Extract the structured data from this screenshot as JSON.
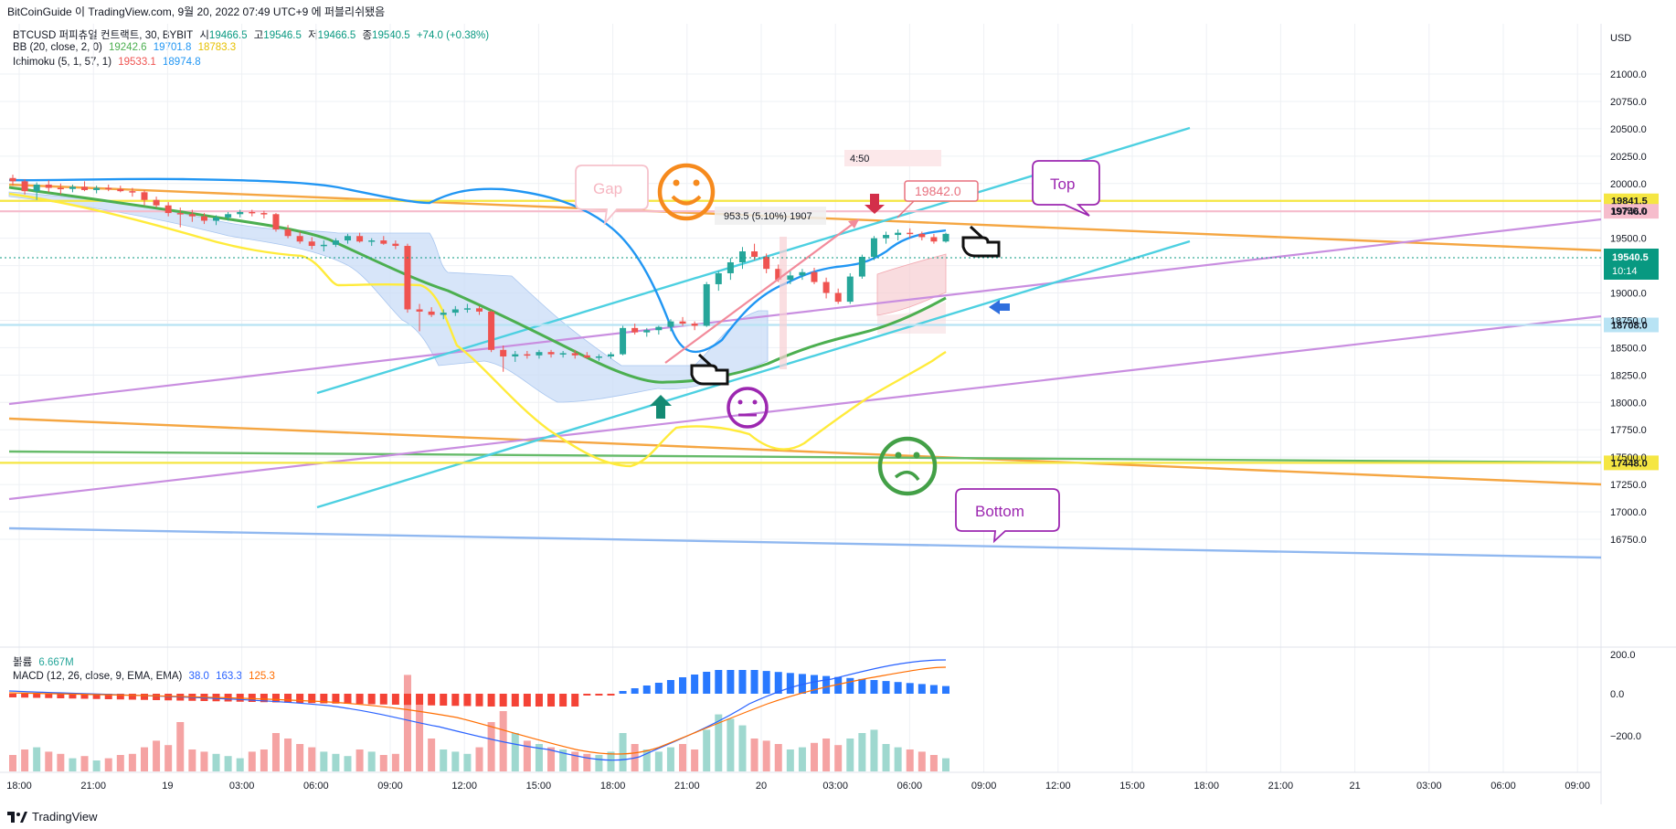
{
  "header": {
    "title": "BitCoinGuide 이 TradingView.com, 9월 20, 2022 07:49 UTC+9 에 퍼블리쉬됐음"
  },
  "legend": {
    "symbol": "BTCUSD 퍼피츄얼 컨트랙트, 30, BYBIT",
    "open_label": "시",
    "open": "19466.5",
    "high_label": "고",
    "high": "19546.5",
    "low_label": "저",
    "low": "19466.5",
    "close_label": "종",
    "close": "19540.5",
    "change": "+74.0 (+0.38%)",
    "bb_label": "BB (20, close, 2, 0)",
    "bb_basis": "19242.6",
    "bb_upper": "19701.8",
    "bb_lower": "18783.3",
    "ichimoku_label": "Ichimoku (5, 1, 57, 1)",
    "ichimoku_a": "19533.1",
    "ichimoku_b": "18974.8",
    "volume_label": "볼륨",
    "volume": "6.667M",
    "macd_label": "MACD (12, 26, close, 9, EMA, EMA)",
    "macd_hist": "38.0",
    "macd_line": "163.3",
    "macd_signal": "125.3"
  },
  "price_axis": {
    "currency": "USD",
    "ticks": [
      "21000.0",
      "20750.0",
      "20500.0",
      "20250.0",
      "20000.0",
      "19750.0",
      "19500.0",
      "19250.0",
      "19000.0",
      "18750.0",
      "18500.0",
      "18250.0",
      "18000.0",
      "17750.0",
      "17500.0",
      "17250.0",
      "17000.0",
      "16750.0"
    ],
    "current_price": "19540.5",
    "countdown": "10:14"
  },
  "macd_axis": {
    "ticks": [
      "200.0",
      "0.0",
      "−200.0"
    ]
  },
  "time_axis": {
    "ticks": [
      "18:00",
      "21:00",
      "19",
      "03:00",
      "06:00",
      "09:00",
      "12:00",
      "15:00",
      "18:00",
      "21:00",
      "20",
      "03:00",
      "06:00",
      "09:00",
      "12:00",
      "15:00",
      "18:00",
      "21:00",
      "21",
      "03:00",
      "06:00",
      "09:00"
    ]
  },
  "annotations": {
    "gap": "Gap",
    "top": "Top",
    "bottom": "Bottom",
    "measure": "953.5 (5.10%) 1907",
    "timebox": "4:50",
    "price_callout": "19842.0",
    "level_19841": "19841.5",
    "level_19746": "19746.0",
    "level_18708": "18708.0",
    "level_17448": "17448.0"
  },
  "chart_data": {
    "type": "candlestick",
    "symbol": "BTCUSD",
    "timeframe": "30",
    "exchange": "BYBIT",
    "ylim": [
      16650,
      21150
    ],
    "candles_ohlc": [
      [
        20050,
        20080,
        19980,
        20020
      ],
      [
        20020,
        20040,
        19900,
        19930
      ],
      [
        19930,
        20010,
        19850,
        19990
      ],
      [
        19990,
        20030,
        19920,
        19960
      ],
      [
        19960,
        20000,
        19900,
        19950
      ],
      [
        19950,
        19990,
        19920,
        19970
      ],
      [
        19970,
        20020,
        19930,
        19940
      ],
      [
        19940,
        19980,
        19910,
        19960
      ],
      [
        19960,
        19990,
        19930,
        19950
      ],
      [
        19950,
        19980,
        19920,
        19930
      ],
      [
        19930,
        19960,
        19880,
        19920
      ],
      [
        19920,
        19940,
        19800,
        19850
      ],
      [
        19850,
        19880,
        19780,
        19800
      ],
      [
        19800,
        19830,
        19700,
        19730
      ],
      [
        19730,
        19780,
        19600,
        19720
      ],
      [
        19720,
        19760,
        19650,
        19700
      ],
      [
        19700,
        19730,
        19630,
        19660
      ],
      [
        19660,
        19710,
        19620,
        19690
      ],
      [
        19690,
        19740,
        19660,
        19720
      ],
      [
        19720,
        19760,
        19690,
        19740
      ],
      [
        19740,
        19760,
        19700,
        19730
      ],
      [
        19730,
        19750,
        19680,
        19720
      ],
      [
        19720,
        19730,
        19560,
        19580
      ],
      [
        19580,
        19620,
        19500,
        19520
      ],
      [
        19520,
        19560,
        19450,
        19470
      ],
      [
        19470,
        19510,
        19400,
        19430
      ],
      [
        19430,
        19480,
        19380,
        19440
      ],
      [
        19440,
        19500,
        19420,
        19480
      ],
      [
        19480,
        19540,
        19450,
        19520
      ],
      [
        19520,
        19550,
        19460,
        19470
      ],
      [
        19470,
        19500,
        19430,
        19480
      ],
      [
        19480,
        19520,
        19440,
        19450
      ],
      [
        19450,
        19480,
        19400,
        19430
      ],
      [
        19430,
        19450,
        18820,
        18850
      ],
      [
        18850,
        18900,
        18650,
        18830
      ],
      [
        18830,
        18870,
        18780,
        18800
      ],
      [
        18800,
        18850,
        18760,
        18820
      ],
      [
        18820,
        18880,
        18790,
        18850
      ],
      [
        18850,
        18900,
        18820,
        18860
      ],
      [
        18860,
        18880,
        18800,
        18830
      ],
      [
        18830,
        18840,
        18460,
        18480
      ],
      [
        18480,
        18520,
        18280,
        18420
      ],
      [
        18420,
        18470,
        18370,
        18440
      ],
      [
        18440,
        18470,
        18400,
        18430
      ],
      [
        18430,
        18480,
        18400,
        18460
      ],
      [
        18460,
        18480,
        18410,
        18440
      ],
      [
        18440,
        18470,
        18410,
        18450
      ],
      [
        18450,
        18480,
        18400,
        18430
      ],
      [
        18430,
        18460,
        18400,
        18410
      ],
      [
        18410,
        18440,
        18380,
        18420
      ],
      [
        18420,
        18460,
        18400,
        18440
      ],
      [
        18440,
        18700,
        18430,
        18680
      ],
      [
        18680,
        18720,
        18620,
        18640
      ],
      [
        18640,
        18680,
        18600,
        18660
      ],
      [
        18660,
        18700,
        18620,
        18690
      ],
      [
        18690,
        18760,
        18650,
        18740
      ],
      [
        18740,
        18780,
        18700,
        18720
      ],
      [
        18720,
        18740,
        18660,
        18700
      ],
      [
        18700,
        19100,
        18690,
        19080
      ],
      [
        19080,
        19200,
        19020,
        19180
      ],
      [
        19180,
        19320,
        19120,
        19280
      ],
      [
        19280,
        19420,
        19220,
        19380
      ],
      [
        19380,
        19450,
        19300,
        19330
      ],
      [
        19330,
        19360,
        19180,
        19220
      ],
      [
        19220,
        19260,
        19100,
        19120
      ],
      [
        19120,
        19200,
        19080,
        19160
      ],
      [
        19160,
        19220,
        19120,
        19190
      ],
      [
        19190,
        19230,
        19080,
        19100
      ],
      [
        19100,
        19140,
        18950,
        19000
      ],
      [
        19000,
        19040,
        18900,
        18920
      ],
      [
        18920,
        19180,
        18900,
        19150
      ],
      [
        19150,
        19350,
        19130,
        19330
      ],
      [
        19330,
        19520,
        19300,
        19500
      ],
      [
        19500,
        19560,
        19450,
        19530
      ],
      [
        19530,
        19580,
        19480,
        19550
      ],
      [
        19550,
        19590,
        19500,
        19540
      ],
      [
        19540,
        19560,
        19480,
        19510
      ],
      [
        19510,
        19540,
        19450,
        19470
      ],
      [
        19470,
        19550,
        19460,
        19540
      ]
    ],
    "horizontal_levels": [
      19841.5,
      19746.0,
      18708.0,
      17448.0
    ],
    "macd_ylim": [
      -330,
      270
    ],
    "macd_ticks": [
      200,
      0,
      -200
    ],
    "time_ticks": [
      "18:00",
      "21:00",
      "19",
      "03:00",
      "06:00",
      "09:00",
      "12:00",
      "15:00",
      "18:00",
      "21:00",
      "20",
      "03:00",
      "06:00",
      "09:00",
      "12:00",
      "15:00",
      "18:00",
      "21:00",
      "21",
      "03:00",
      "06:00",
      "09:00"
    ],
    "colors": {
      "up": "#26a69a",
      "down": "#ef5350",
      "bb_upper": "#2196f3",
      "bb_basis": "#4caf50",
      "bb_lower": "#ffeb3b",
      "cloud": "#c9dcf7"
    }
  }
}
